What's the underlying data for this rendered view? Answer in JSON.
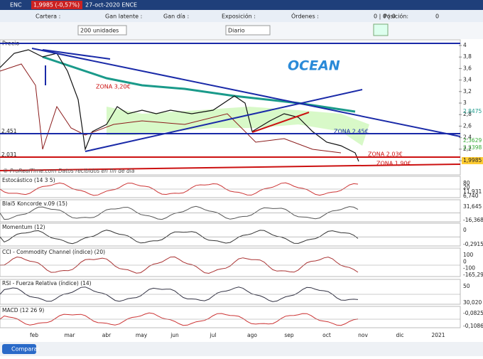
{
  "header": {
    "symbol": "ENC",
    "price": "1,9985 (-0,57%)",
    "date": "27-oct-2020 ENCE"
  },
  "info_bar": {
    "labels": [
      "Cartera :",
      "Gan latente :",
      "Gan día :",
      "Exposición :",
      "Órdenes :",
      "Posición:"
    ],
    "orders": "0 | 0 | 0",
    "position": "0"
  },
  "controls": {
    "quantity": "200 unidades",
    "period": "Diario"
  },
  "main": {
    "title": "Precio",
    "yticks": [
      "4",
      "3,8",
      "3,6",
      "3,4",
      "3,2",
      "3",
      "2,8",
      "2,6",
      "2,4",
      "2,2",
      "2"
    ],
    "right_labels": [
      "2,8475",
      "2,3629",
      "2,2398",
      "1,9985"
    ],
    "left_labels": [
      "2,451",
      "2,031"
    ],
    "annotations": [
      "OCEAN",
      "ZONA 3,20€",
      "ZONA 2,45€",
      "ZONA 2,03€",
      "ZONA 1,90€"
    ],
    "footer": "© ProRealTime.com Datos recibidos en fin de día"
  },
  "panels": [
    {
      "title": "Estocástico (14 3 5)",
      "labels": [
        "80",
        "20",
        "11,931",
        "6,740"
      ]
    },
    {
      "title": "Blai5 Koncorde v.09 (15)",
      "labels": [
        "31,645",
        "-16,368"
      ]
    },
    {
      "title": "Momentum (12)",
      "labels": [
        "0",
        "-0,2915"
      ]
    },
    {
      "title": "CCI - Commodity Channel (índice) (20)",
      "labels": [
        "100",
        "0",
        "-100",
        "-165,29"
      ]
    },
    {
      "title": "RSI - Fuerza Relativa (índice) (14)",
      "labels": [
        "50",
        "30,020"
      ]
    },
    {
      "title": "MACD (12 26 9)",
      "labels": [
        "-0,0825",
        "-0,1086"
      ]
    }
  ],
  "months": [
    "feb",
    "mar",
    "abr",
    "may",
    "jun",
    "jul",
    "ago",
    "sep",
    "oct",
    "nov",
    "dic",
    "2021"
  ],
  "footer": {
    "compare": "Comparar"
  }
}
